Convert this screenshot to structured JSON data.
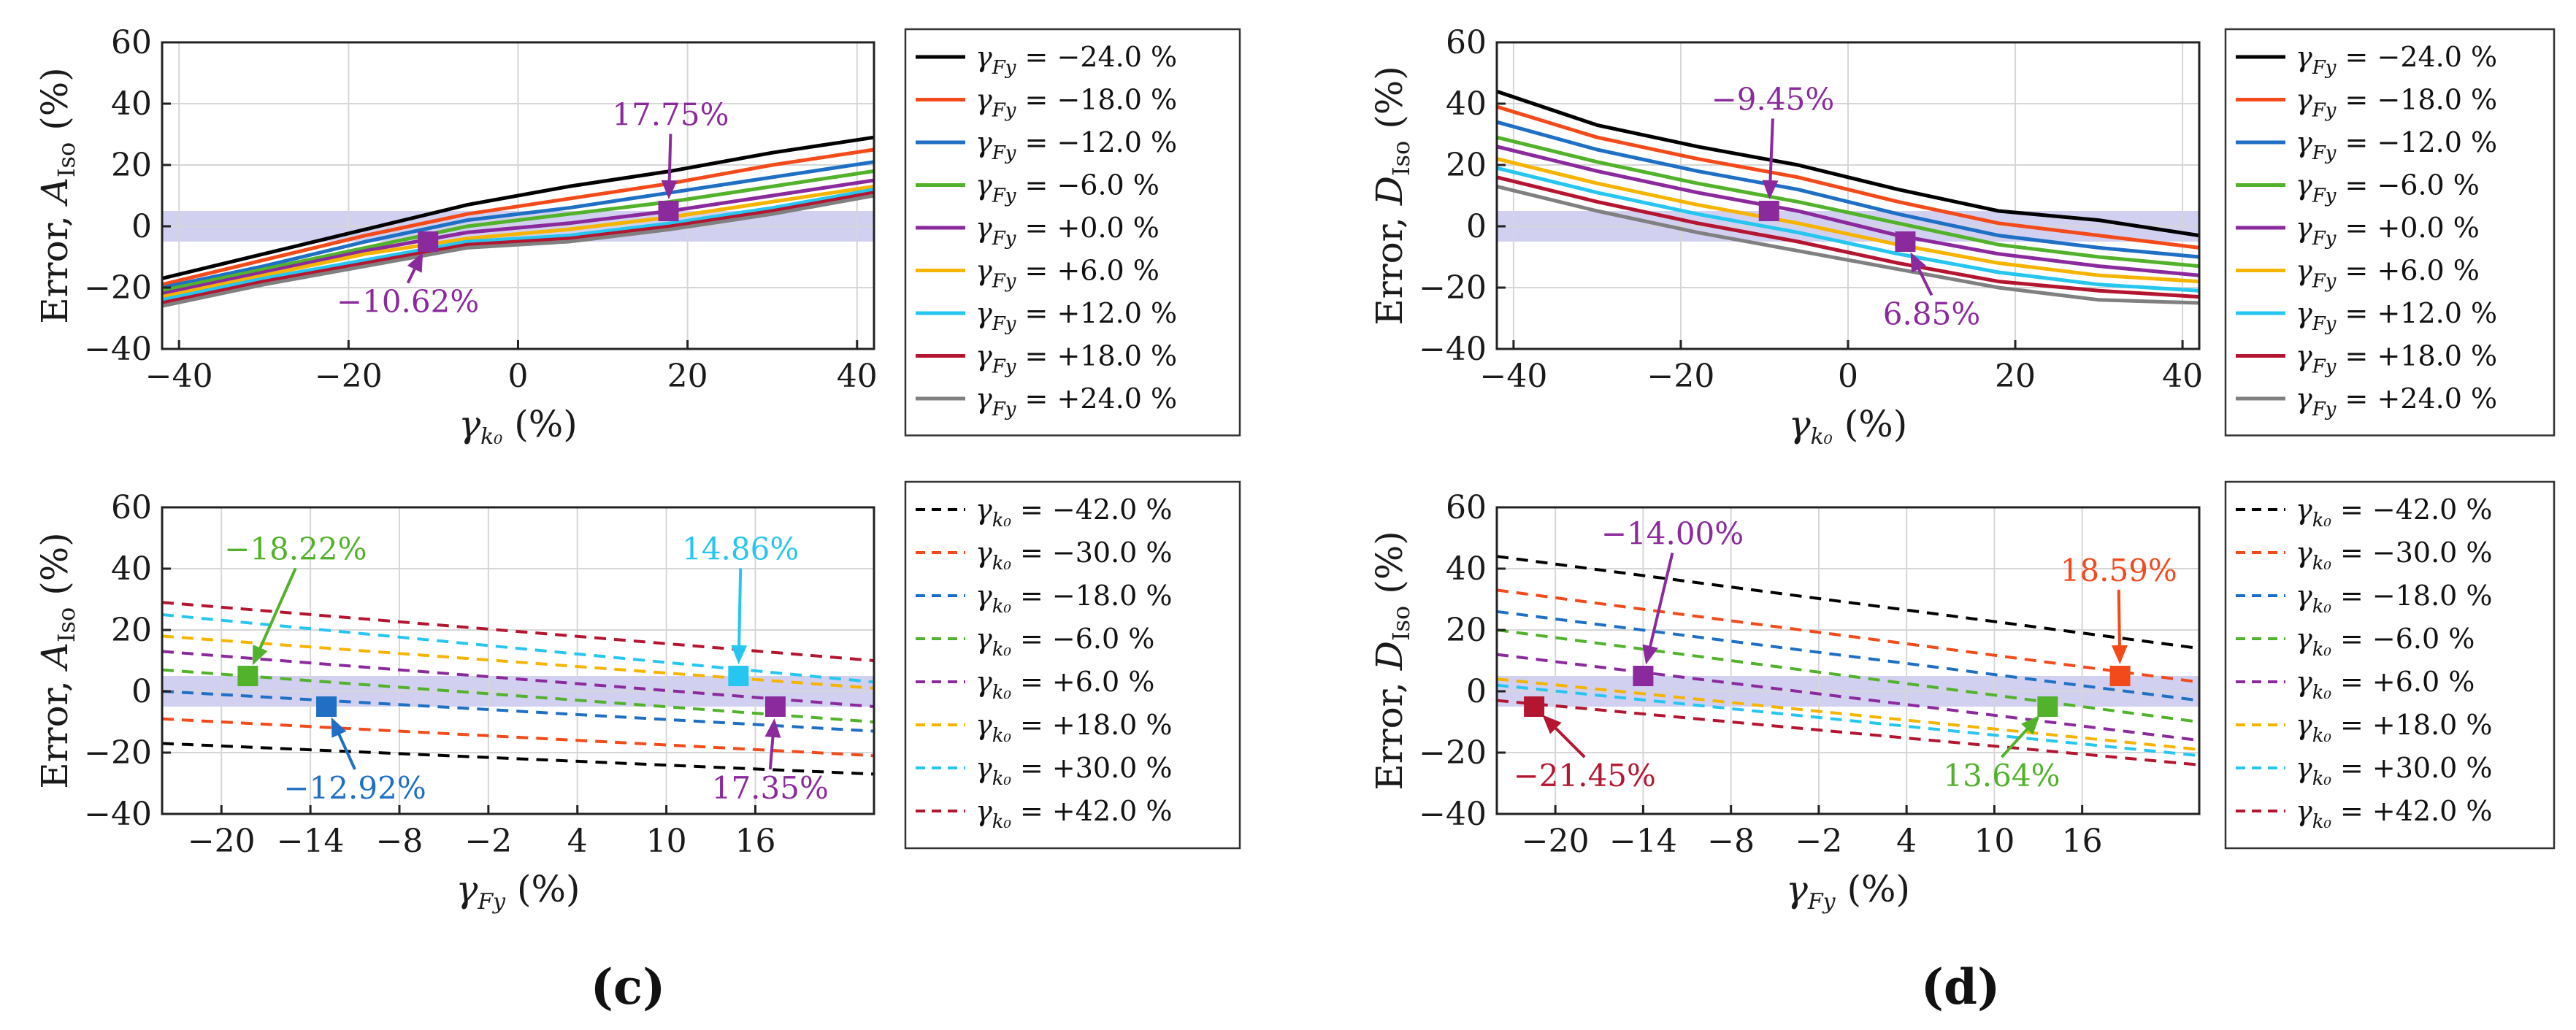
{
  "colors": {
    "set9": [
      "#000000",
      "#f24a1b",
      "#1f6fc4",
      "#52b22b",
      "#8b2a9c",
      "#f5b400",
      "#26c6f0",
      "#b41530",
      "#808080"
    ],
    "band": "#c9c8ee"
  },
  "panel_labels": [
    "(c)",
    "(d)"
  ],
  "chart_data": [
    {
      "id": "c-top",
      "type": "line",
      "ylabel_prefix": "Error,",
      "ylabel_sym": "A",
      "ylabel_sub": "Iso",
      "ylabel_unit": "(%)",
      "xlabel_sym": "γ",
      "xlabel_sub": "k₀",
      "xlabel_unit": "(%)",
      "xlim": [
        -42,
        42
      ],
      "ylim": [
        -40,
        60
      ],
      "xticks": [
        -40,
        -20,
        0,
        20,
        40
      ],
      "yticks": [
        -40,
        -20,
        0,
        20,
        40,
        60
      ],
      "band": [
        -5,
        5
      ],
      "dash": false,
      "legend_sub": "Fy",
      "x": [
        -42,
        -30,
        -18,
        -6,
        6,
        18,
        30,
        42
      ],
      "series": [
        {
          "name": "−24.0",
          "values": [
            -17,
            -9,
            -1,
            7,
            13,
            18,
            24,
            29
          ]
        },
        {
          "name": "−18.0",
          "values": [
            -19,
            -11,
            -3,
            4,
            9,
            14,
            20,
            25
          ]
        },
        {
          "name": "−12.0",
          "values": [
            -20,
            -13,
            -5,
            2,
            6,
            11,
            16,
            21
          ]
        },
        {
          "name": "−6.0",
          "values": [
            -21,
            -14,
            -7,
            0,
            4,
            8,
            13,
            18
          ]
        },
        {
          "name": "+0.0",
          "values": [
            -22,
            -15,
            -8,
            -2,
            1,
            5,
            10,
            15
          ]
        },
        {
          "name": "+6.0",
          "values": [
            -23,
            -16,
            -9,
            -4,
            -1,
            3,
            8,
            13
          ]
        },
        {
          "name": "+12.0",
          "values": [
            -24,
            -17,
            -11,
            -5,
            -3,
            1,
            6,
            12
          ]
        },
        {
          "name": "+18.0",
          "values": [
            -25,
            -18,
            -12,
            -6,
            -4,
            0,
            5,
            11
          ]
        },
        {
          "name": "+24.0",
          "values": [
            -26,
            -19,
            -13,
            -7,
            -5,
            -1,
            4,
            10
          ]
        }
      ],
      "markers": [
        {
          "x": -10.62,
          "y": -5,
          "series": 4,
          "label": "−10.62%",
          "label_x": -13,
          "label_y": -28
        },
        {
          "x": 17.75,
          "y": 5,
          "series": 4,
          "label": "17.75%",
          "label_x": 18,
          "label_y": 33
        }
      ]
    },
    {
      "id": "d-top",
      "type": "line",
      "ylabel_prefix": "Error,",
      "ylabel_sym": "D",
      "ylabel_sub": "Iso",
      "ylabel_unit": "(%)",
      "xlabel_sym": "γ",
      "xlabel_sub": "k₀",
      "xlabel_unit": "(%)",
      "xlim": [
        -42,
        42
      ],
      "ylim": [
        -40,
        60
      ],
      "xticks": [
        -40,
        -20,
        0,
        20,
        40
      ],
      "yticks": [
        -40,
        -20,
        0,
        20,
        40,
        60
      ],
      "band": [
        -5,
        5
      ],
      "dash": false,
      "legend_sub": "Fy",
      "x": [
        -42,
        -30,
        -18,
        -6,
        6,
        18,
        30,
        42
      ],
      "series": [
        {
          "name": "−24.0",
          "values": [
            44,
            33,
            26,
            20,
            12,
            5,
            2,
            -3
          ]
        },
        {
          "name": "−18.0",
          "values": [
            39,
            29,
            22,
            16,
            8,
            1,
            -3,
            -7
          ]
        },
        {
          "name": "−12.0",
          "values": [
            34,
            25,
            18,
            12,
            4,
            -3,
            -7,
            -10
          ]
        },
        {
          "name": "−6.0",
          "values": [
            29,
            21,
            14,
            8,
            1,
            -6,
            -10,
            -13
          ]
        },
        {
          "name": "+0.0",
          "values": [
            26,
            18,
            11,
            5,
            -3,
            -9,
            -13,
            -16
          ]
        },
        {
          "name": "+6.0",
          "values": [
            22,
            14,
            7,
            1,
            -6,
            -12,
            -16,
            -18
          ]
        },
        {
          "name": "+12.0",
          "values": [
            19,
            11,
            4,
            -2,
            -9,
            -15,
            -19,
            -21
          ]
        },
        {
          "name": "+18.0",
          "values": [
            16,
            8,
            1,
            -5,
            -12,
            -18,
            -21,
            -23
          ]
        },
        {
          "name": "+24.0",
          "values": [
            13,
            5,
            -2,
            -8,
            -14,
            -20,
            -24,
            -25
          ]
        }
      ],
      "markers": [
        {
          "x": -9.45,
          "y": 5,
          "series": 4,
          "label": "−9.45%",
          "label_x": -9,
          "label_y": 38
        },
        {
          "x": 6.85,
          "y": -5,
          "series": 4,
          "label": "6.85%",
          "label_x": 10,
          "label_y": -32
        }
      ]
    },
    {
      "id": "c-bottom",
      "type": "line",
      "ylabel_prefix": "Error,",
      "ylabel_sym": "A",
      "ylabel_sub": "Iso",
      "ylabel_unit": "(%)",
      "xlabel_sym": "γ",
      "xlabel_sub": "Fy",
      "xlabel_unit": "(%)",
      "xlim": [
        -24,
        24
      ],
      "ylim": [
        -40,
        60
      ],
      "xticks": [
        -20,
        -14,
        -8,
        -2,
        4,
        10,
        16
      ],
      "yticks": [
        -40,
        -20,
        0,
        20,
        40,
        60
      ],
      "band": [
        -5,
        5
      ],
      "dash": true,
      "legend_sub": "k₀",
      "x": [
        -24,
        24
      ],
      "series": [
        {
          "name": "−42.0",
          "values": [
            -17,
            -27
          ]
        },
        {
          "name": "−30.0",
          "values": [
            -9,
            -21
          ]
        },
        {
          "name": "−18.0",
          "values": [
            0,
            -13
          ]
        },
        {
          "name": "−6.0",
          "values": [
            7,
            -10
          ]
        },
        {
          "name": "+6.0",
          "values": [
            13,
            -5
          ]
        },
        {
          "name": "+18.0",
          "values": [
            18,
            1
          ]
        },
        {
          "name": "+30.0",
          "values": [
            25,
            3
          ]
        },
        {
          "name": "+42.0",
          "values": [
            29,
            10
          ]
        }
      ],
      "markers": [
        {
          "x": -18.22,
          "y": 5,
          "series": 3,
          "label": "−18.22%",
          "label_x": -15,
          "label_y": 43
        },
        {
          "x": -12.92,
          "y": -5,
          "series": 2,
          "label": "−12.92%",
          "label_x": -11,
          "label_y": -35
        },
        {
          "x": 14.86,
          "y": 5,
          "series": 6,
          "label": "14.86%",
          "label_x": 15,
          "label_y": 43
        },
        {
          "x": 17.35,
          "y": -5,
          "series": 4,
          "label": "17.35%",
          "label_x": 17,
          "label_y": -35
        }
      ]
    },
    {
      "id": "d-bottom",
      "type": "line",
      "ylabel_prefix": "Error,",
      "ylabel_sym": "D",
      "ylabel_sub": "Iso",
      "ylabel_unit": "(%)",
      "xlabel_sym": "γ",
      "xlabel_sub": "Fy",
      "xlabel_unit": "(%)",
      "xlim": [
        -24,
        24
      ],
      "ylim": [
        -40,
        60
      ],
      "xticks": [
        -20,
        -14,
        -8,
        -2,
        4,
        10,
        16
      ],
      "yticks": [
        -40,
        -20,
        0,
        20,
        40,
        60
      ],
      "band": [
        -5,
        5
      ],
      "dash": true,
      "legend_sub": "k₀",
      "x": [
        -24,
        24
      ],
      "series": [
        {
          "name": "−42.0",
          "values": [
            44,
            14
          ]
        },
        {
          "name": "−30.0",
          "values": [
            33,
            3
          ]
        },
        {
          "name": "−18.0",
          "values": [
            26,
            -3
          ]
        },
        {
          "name": "−6.0",
          "values": [
            20,
            -10
          ]
        },
        {
          "name": "+6.0",
          "values": [
            12,
            -16
          ]
        },
        {
          "name": "+18.0",
          "values": [
            4,
            -19
          ]
        },
        {
          "name": "+30.0",
          "values": [
            2,
            -21
          ]
        },
        {
          "name": "+42.0",
          "values": [
            -3,
            -24
          ]
        }
      ],
      "markers": [
        {
          "x": -14.0,
          "y": 5,
          "series": 4,
          "label": "−14.00%",
          "label_x": -12,
          "label_y": 48
        },
        {
          "x": 18.59,
          "y": 5,
          "series": 1,
          "label": "18.59%",
          "label_x": 18.5,
          "label_y": 36
        },
        {
          "x": -21.45,
          "y": -5,
          "series": 7,
          "label": "−21.45%",
          "label_x": -18,
          "label_y": -31
        },
        {
          "x": 13.64,
          "y": -5,
          "series": 3,
          "label": "13.64%",
          "label_x": 10.5,
          "label_y": -31
        }
      ]
    }
  ]
}
